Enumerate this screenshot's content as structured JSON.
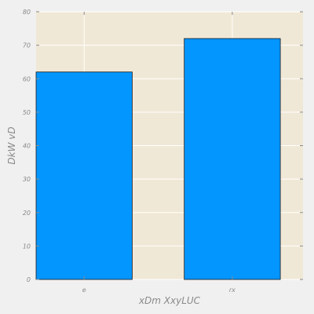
{
  "chart_data": {
    "type": "bar",
    "categories": [
      "e",
      "rx"
    ],
    "values": [
      62,
      72
    ],
    "title": "",
    "xlabel": "xDm XxyLUC",
    "ylabel": "DkW vD",
    "ylim": [
      0,
      80
    ],
    "yticks": [
      0,
      10,
      20,
      30,
      40,
      50,
      60,
      70,
      80
    ],
    "grid": true,
    "colors": {
      "bar_fill": "#0396ff",
      "bar_edge": "#1a1a1a",
      "plot_bg": "#f0e8d6",
      "page_bg": "#f0f0f0",
      "grid": "#ffffff",
      "text": "#8a8a8a"
    }
  }
}
